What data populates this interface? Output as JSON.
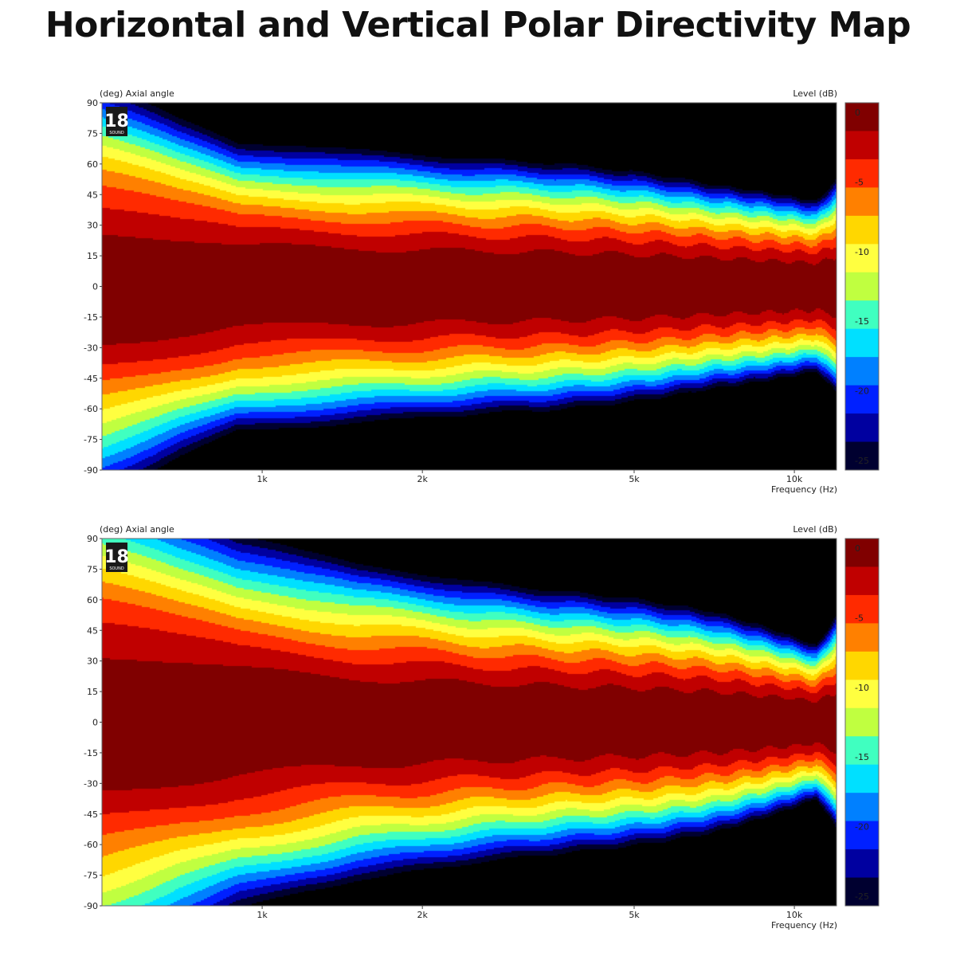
{
  "page": {
    "title": "Horizontal and Vertical Polar Directivity Map"
  },
  "charts": [
    {
      "y_header": "(deg)  Axial angle",
      "level_header": "Level  (dB)",
      "x_header": "Frequency  (Hz)",
      "logo": {
        "number": "18",
        "sub": "SOUND"
      }
    },
    {
      "y_header": "(deg)  Axial angle",
      "level_header": "Level  (dB)",
      "x_header": "Frequency  (Hz)",
      "logo": {
        "number": "18",
        "sub": "SOUND"
      }
    }
  ],
  "chart_data": [
    {
      "type": "heatmap",
      "title": "",
      "ylabel": "Axial angle (deg)",
      "xlabel": "Frequency (Hz)",
      "colorbar_label": "Level (dB)",
      "x_scale": "log",
      "xlim": [
        500,
        12000
      ],
      "ylim": [
        -90,
        90
      ],
      "zlim": [
        -25,
        0
      ],
      "x_ticks": [
        {
          "value": 1000,
          "label": "1k"
        },
        {
          "value": 2000,
          "label": "2k"
        },
        {
          "value": 5000,
          "label": "5k"
        },
        {
          "value": 10000,
          "label": "10k"
        }
      ],
      "y_ticks": [
        90,
        75,
        60,
        45,
        30,
        15,
        0,
        -15,
        -30,
        -45,
        -60,
        -75,
        -90
      ],
      "colorbar_ticks": [
        0,
        -5,
        -10,
        -15,
        -20,
        -25
      ],
      "colormap": [
        "#800000",
        "#c00000",
        "#ff2a00",
        "#ff8000",
        "#ffd700",
        "#ffff40",
        "#c0ff40",
        "#40ffc0",
        "#00e0ff",
        "#0080ff",
        "#0020ff",
        "#0000a0",
        "#000030",
        "#000000"
      ],
      "contour_6dB_halfwidth_deg": {
        "freq_hz": [
          500,
          700,
          900,
          1200,
          1500,
          2000,
          2500,
          3500,
          5000,
          7000,
          9000,
          11000,
          12000
        ],
        "upper": [
          48,
          40,
          34,
          33,
          32,
          31,
          30,
          29,
          27,
          24,
          22,
          20,
          25
        ],
        "lower": [
          -48,
          -40,
          -34,
          -33,
          -32,
          -31,
          -30,
          -29,
          -27,
          -24,
          -22,
          -20,
          -25
        ]
      }
    },
    {
      "type": "heatmap",
      "title": "",
      "ylabel": "Axial angle (deg)",
      "xlabel": "Frequency (Hz)",
      "colorbar_label": "Level (dB)",
      "x_scale": "log",
      "xlim": [
        500,
        12000
      ],
      "ylim": [
        -90,
        90
      ],
      "zlim": [
        -25,
        0
      ],
      "x_ticks": [
        {
          "value": 1000,
          "label": "1k"
        },
        {
          "value": 2000,
          "label": "2k"
        },
        {
          "value": 5000,
          "label": "5k"
        },
        {
          "value": 10000,
          "label": "10k"
        }
      ],
      "y_ticks": [
        90,
        75,
        60,
        45,
        30,
        15,
        0,
        -15,
        -30,
        -45,
        -60,
        -75,
        -90
      ],
      "colorbar_ticks": [
        0,
        -5,
        -10,
        -15,
        -20,
        -25
      ],
      "colormap": [
        "#800000",
        "#c00000",
        "#ff2a00",
        "#ff8000",
        "#ffd700",
        "#ffff40",
        "#c0ff40",
        "#40ffc0",
        "#00e0ff",
        "#0080ff",
        "#0020ff",
        "#0000a0",
        "#000030",
        "#000000"
      ],
      "contour_6dB_halfwidth_deg": {
        "freq_hz": [
          500,
          700,
          900,
          1200,
          1500,
          2000,
          2500,
          3500,
          5000,
          7000,
          9000,
          11000,
          12000
        ],
        "upper": [
          58,
          50,
          44,
          40,
          37,
          35,
          33,
          31,
          29,
          26,
          22,
          18,
          25
        ],
        "lower": [
          -58,
          -50,
          -44,
          -40,
          -37,
          -35,
          -33,
          -31,
          -29,
          -26,
          -22,
          -18,
          -25
        ]
      }
    }
  ]
}
